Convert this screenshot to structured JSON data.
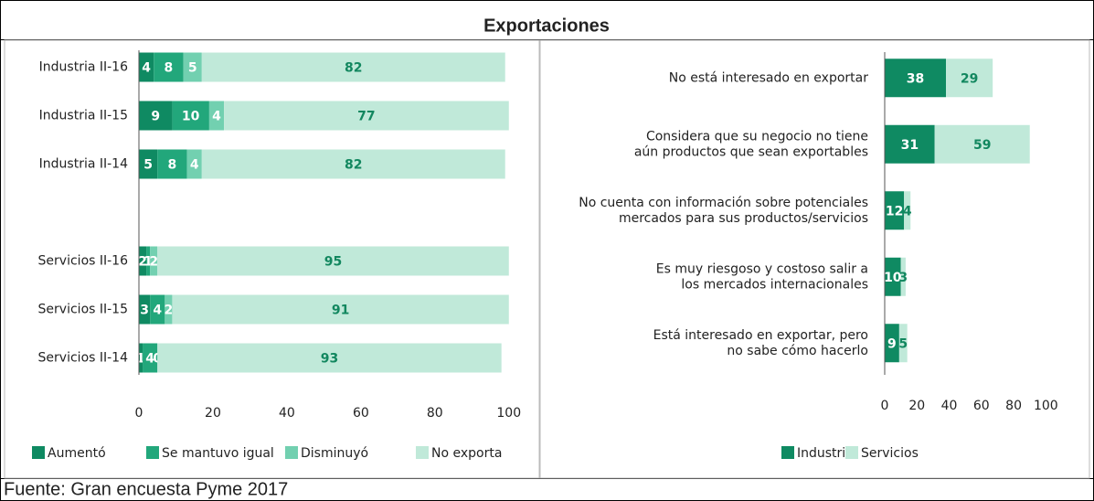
{
  "title": "Exportaciones",
  "source": "Fuente: Gran encuesta Pyme 2017",
  "chart_data": [
    {
      "type": "bar",
      "orientation": "horizontal",
      "stacked": true,
      "legend": "bottom",
      "categories": [
        "Industria II-16",
        "Industria II-15",
        "Industria II-14",
        null,
        "Servicios II-16",
        "Servicios II-15",
        "Servicios II-14"
      ],
      "series": [
        {
          "name": "Aumentó",
          "color": "#0f8a62",
          "values": [
            4,
            9,
            5,
            null,
            2,
            3,
            1
          ]
        },
        {
          "name": "Se mantuvo igual",
          "color": "#22a77b",
          "values": [
            8,
            10,
            8,
            null,
            1,
            4,
            4
          ]
        },
        {
          "name": "Disminuyó",
          "color": "#72d0b0",
          "values": [
            5,
            4,
            4,
            null,
            2,
            2,
            0
          ]
        },
        {
          "name": "No exporta",
          "color": "#c0e9d9",
          "values": [
            82,
            77,
            82,
            null,
            95,
            91,
            93
          ]
        }
      ],
      "xlim": [
        0,
        105
      ],
      "xticks": [
        0,
        20,
        40,
        60,
        80,
        100
      ]
    },
    {
      "type": "bar",
      "orientation": "horizontal",
      "stacked": true,
      "legend": "bottom",
      "categories": [
        [
          "No está interesado en exportar"
        ],
        [
          "Considera que su negocio no tiene",
          "aún productos que sean exportables"
        ],
        [
          "No cuenta con información sobre potenciales",
          "mercados para sus productos/servicios"
        ],
        [
          "Es muy riesgoso y costoso salir a",
          "los mercados internacionales"
        ],
        [
          "Está interesado en exportar, pero",
          "no sabe cómo hacerlo"
        ]
      ],
      "series": [
        {
          "name": "Industria",
          "color": "#0f8a62",
          "values": [
            38,
            31,
            12,
            10,
            9
          ]
        },
        {
          "name": "Servicios",
          "color": "#c0e9d9",
          "values": [
            29,
            59,
            4,
            3,
            5
          ]
        }
      ],
      "xlim": [
        0,
        110
      ],
      "xticks": [
        0,
        20,
        40,
        60,
        80,
        100
      ]
    }
  ]
}
